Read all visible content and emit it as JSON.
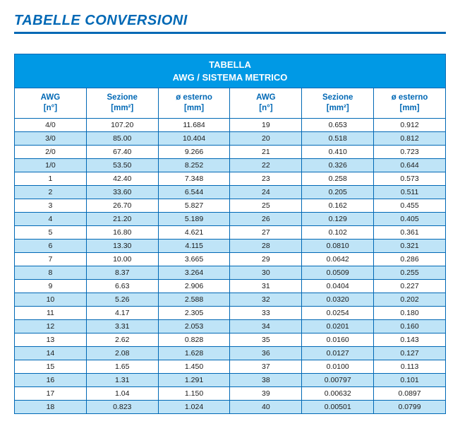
{
  "page_title": "TABELLE CONVERSIONI",
  "table": {
    "title_line1": "TABELLA",
    "title_line2": "AWG / SISTEMA METRICO",
    "colors": {
      "brand_blue": "#0068b5",
      "header_bg": "#0099e5",
      "header_text": "#ffffff",
      "zebra_light": "#ffffff",
      "zebra_dark": "#bfe4f7",
      "cell_text": "#1a1a1a"
    },
    "columns_left": [
      {
        "label": "AWG",
        "unit": "[n°]"
      },
      {
        "label": "Sezione",
        "unit": "[mm²]"
      },
      {
        "label": "ø esterno",
        "unit": "[mm]"
      }
    ],
    "columns_right": [
      {
        "label": "AWG",
        "unit": "[n°]"
      },
      {
        "label": "Sezione",
        "unit": "[mm²]"
      },
      {
        "label": "ø esterno",
        "unit": "[mm]"
      }
    ],
    "rows": [
      {
        "l": [
          "4/0",
          "107.20",
          "11.684"
        ],
        "r": [
          "19",
          "0.653",
          "0.912"
        ]
      },
      {
        "l": [
          "3/0",
          "85.00",
          "10.404"
        ],
        "r": [
          "20",
          "0.518",
          "0.812"
        ]
      },
      {
        "l": [
          "2/0",
          "67.40",
          "9.266"
        ],
        "r": [
          "21",
          "0.410",
          "0.723"
        ]
      },
      {
        "l": [
          "1/0",
          "53.50",
          "8.252"
        ],
        "r": [
          "22",
          "0.326",
          "0.644"
        ]
      },
      {
        "l": [
          "1",
          "42.40",
          "7.348"
        ],
        "r": [
          "23",
          "0.258",
          "0.573"
        ]
      },
      {
        "l": [
          "2",
          "33.60",
          "6.544"
        ],
        "r": [
          "24",
          "0.205",
          "0.511"
        ]
      },
      {
        "l": [
          "3",
          "26.70",
          "5.827"
        ],
        "r": [
          "25",
          "0.162",
          "0.455"
        ]
      },
      {
        "l": [
          "4",
          "21.20",
          "5.189"
        ],
        "r": [
          "26",
          "0.129",
          "0.405"
        ]
      },
      {
        "l": [
          "5",
          "16.80",
          "4.621"
        ],
        "r": [
          "27",
          "0.102",
          "0.361"
        ]
      },
      {
        "l": [
          "6",
          "13.30",
          "4.115"
        ],
        "r": [
          "28",
          "0.0810",
          "0.321"
        ]
      },
      {
        "l": [
          "7",
          "10.00",
          "3.665"
        ],
        "r": [
          "29",
          "0.0642",
          "0.286"
        ]
      },
      {
        "l": [
          "8",
          "8.37",
          "3.264"
        ],
        "r": [
          "30",
          "0.0509",
          "0.255"
        ]
      },
      {
        "l": [
          "9",
          "6.63",
          "2.906"
        ],
        "r": [
          "31",
          "0.0404",
          "0.227"
        ]
      },
      {
        "l": [
          "10",
          "5.26",
          "2.588"
        ],
        "r": [
          "32",
          "0.0320",
          "0.202"
        ]
      },
      {
        "l": [
          "11",
          "4.17",
          "2.305"
        ],
        "r": [
          "33",
          "0.0254",
          "0.180"
        ]
      },
      {
        "l": [
          "12",
          "3.31",
          "2.053"
        ],
        "r": [
          "34",
          "0.0201",
          "0.160"
        ]
      },
      {
        "l": [
          "13",
          "2.62",
          "0.828"
        ],
        "r": [
          "35",
          "0.0160",
          "0.143"
        ]
      },
      {
        "l": [
          "14",
          "2.08",
          "1.628"
        ],
        "r": [
          "36",
          "0.0127",
          "0.127"
        ]
      },
      {
        "l": [
          "15",
          "1.65",
          "1.450"
        ],
        "r": [
          "37",
          "0.0100",
          "0.113"
        ]
      },
      {
        "l": [
          "16",
          "1.31",
          "1.291"
        ],
        "r": [
          "38",
          "0.00797",
          "0.101"
        ]
      },
      {
        "l": [
          "17",
          "1.04",
          "1.150"
        ],
        "r": [
          "39",
          "0.00632",
          "0.0897"
        ]
      },
      {
        "l": [
          "18",
          "0.823",
          "1.024"
        ],
        "r": [
          "40",
          "0.00501",
          "0.0799"
        ]
      }
    ]
  }
}
